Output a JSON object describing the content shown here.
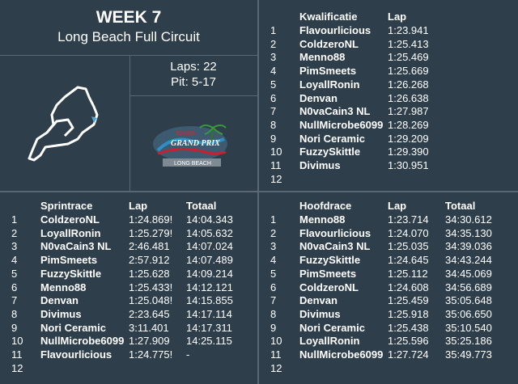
{
  "header": {
    "week": "WEEK 7",
    "track": "Long Beach Full Circuit",
    "laps": "Laps: 22",
    "pit": "Pit: 5-17"
  },
  "logo": {
    "text_top": "TOYOTA",
    "text_main": "GRAND PRIX",
    "text_bottom": "LONG BEACH"
  },
  "qualifying": {
    "headers": [
      "Kwalificatie",
      "Lap"
    ],
    "rows": [
      {
        "pos": "1",
        "name": "Flavourlicious",
        "lap": "1:23.941"
      },
      {
        "pos": "2",
        "name": "ColdzeroNL",
        "lap": "1:25.413"
      },
      {
        "pos": "3",
        "name": "Menno88",
        "lap": "1:25.469"
      },
      {
        "pos": "4",
        "name": "PimSmeets",
        "lap": "1:25.669"
      },
      {
        "pos": "5",
        "name": "LoyallRonin",
        "lap": "1:26.268"
      },
      {
        "pos": "6",
        "name": "Denvan",
        "lap": "1:26.638"
      },
      {
        "pos": "7",
        "name": "N0vaCain3 NL",
        "lap": "1:27.987"
      },
      {
        "pos": "8",
        "name": "NullMicrobe6099",
        "lap": "1:28.269"
      },
      {
        "pos": "9",
        "name": "Nori Ceramic",
        "lap": "1:29.209"
      },
      {
        "pos": "10",
        "name": "FuzzySkittle",
        "lap": "1:29.390"
      },
      {
        "pos": "11",
        "name": "Divimus",
        "lap": "1:30.951"
      },
      {
        "pos": "12",
        "name": "",
        "lap": ""
      }
    ]
  },
  "sprint": {
    "headers": [
      "Sprintrace",
      "Lap",
      "Totaal"
    ],
    "rows": [
      {
        "pos": "1",
        "name": "ColdzeroNL",
        "lap": "1:24.869!",
        "total": "14:04.343"
      },
      {
        "pos": "2",
        "name": "LoyallRonin",
        "lap": "1:25.279!",
        "total": "14:05.632"
      },
      {
        "pos": "3",
        "name": "N0vaCain3 NL",
        "lap": "2:46.481",
        "total": "14:07.024"
      },
      {
        "pos": "4",
        "name": "PimSmeets",
        "lap": "2:57.912",
        "total": "14:07.489"
      },
      {
        "pos": "5",
        "name": "FuzzySkittle",
        "lap": "1:25.628",
        "total": "14:09.214"
      },
      {
        "pos": "6",
        "name": "Menno88",
        "lap": "1:25.433!",
        "total": "14:12.121"
      },
      {
        "pos": "7",
        "name": "Denvan",
        "lap": "1:25.048!",
        "total": "14:15.855"
      },
      {
        "pos": "8",
        "name": "Divimus",
        "lap": "2:23.645",
        "total": "14:17.114"
      },
      {
        "pos": "9",
        "name": "Nori Ceramic",
        "lap": "3:11.401",
        "total": "14:17.311"
      },
      {
        "pos": "10",
        "name": "NullMicrobe6099",
        "lap": "1:27.909",
        "total": "14:25.115"
      },
      {
        "pos": "11",
        "name": "Flavourlicious",
        "lap": "1:24.775!",
        "total": "-"
      },
      {
        "pos": "12",
        "name": "",
        "lap": "",
        "total": ""
      }
    ]
  },
  "main_race": {
    "headers": [
      "Hoofdrace",
      "Lap",
      "Totaal"
    ],
    "rows": [
      {
        "pos": "1",
        "name": "Menno88",
        "lap": "1:23.714",
        "total": "34:30.612"
      },
      {
        "pos": "2",
        "name": "Flavourlicious",
        "lap": "1:24.070",
        "total": "34:35.130"
      },
      {
        "pos": "3",
        "name": "N0vaCain3 NL",
        "lap": "1:25.035",
        "total": "34:39.036"
      },
      {
        "pos": "4",
        "name": "FuzzySkittle",
        "lap": "1:24.645",
        "total": "34:43.244"
      },
      {
        "pos": "5",
        "name": "PimSmeets",
        "lap": "1:25.112",
        "total": "34:45.069"
      },
      {
        "pos": "6",
        "name": "ColdzeroNL",
        "lap": "1:24.608",
        "total": "34:56.689"
      },
      {
        "pos": "7",
        "name": "Denvan",
        "lap": "1:25.459",
        "total": "35:05.648"
      },
      {
        "pos": "8",
        "name": "Divimus",
        "lap": "1:25.918",
        "total": "35:06.650"
      },
      {
        "pos": "9",
        "name": "Nori Ceramic",
        "lap": "1:25.438",
        "total": "35:10.540"
      },
      {
        "pos": "10",
        "name": "LoyallRonin",
        "lap": "1:25.596",
        "total": "35:25.186"
      },
      {
        "pos": "11",
        "name": "NullMicrobe6099",
        "lap": "1:27.724",
        "total": "35:49.773"
      },
      {
        "pos": "12",
        "name": "",
        "lap": "",
        "total": ""
      }
    ]
  }
}
